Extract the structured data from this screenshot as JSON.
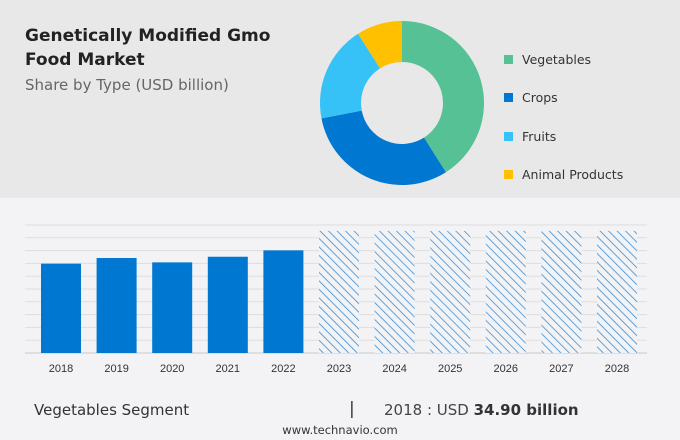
{
  "header": {
    "title": "Genetically Modified Gmo Food Market",
    "subtitle": "Share by Type (USD billion)"
  },
  "chart_data": [
    {
      "type": "pie",
      "donut": true,
      "categories": [
        "Vegetables",
        "Crops",
        "Fruits",
        "Animal Products"
      ],
      "values": [
        41,
        31,
        19,
        9
      ],
      "colors": [
        "#55c194",
        "#0077d0",
        "#36c2f7",
        "#ffc000"
      ],
      "legend": "right"
    },
    {
      "type": "bar",
      "categories": [
        "2018",
        "2019",
        "2020",
        "2021",
        "2022",
        "2023",
        "2024",
        "2025",
        "2026",
        "2027",
        "2028"
      ],
      "values": [
        34.9,
        37.1,
        35.4,
        37.6,
        40.1,
        47.7,
        47.7,
        47.7,
        47.7,
        47.7,
        47.7
      ],
      "forecast": [
        false,
        false,
        false,
        false,
        false,
        true,
        true,
        true,
        true,
        true,
        true
      ],
      "color": "#0077d0",
      "ylim": [
        0,
        50
      ],
      "grid": true
    }
  ],
  "footer": {
    "segment": "Vegetables Segment",
    "separator": "|",
    "year_label": "2018 : USD",
    "value": "34.90 billion",
    "site": "www.technavio.com"
  }
}
